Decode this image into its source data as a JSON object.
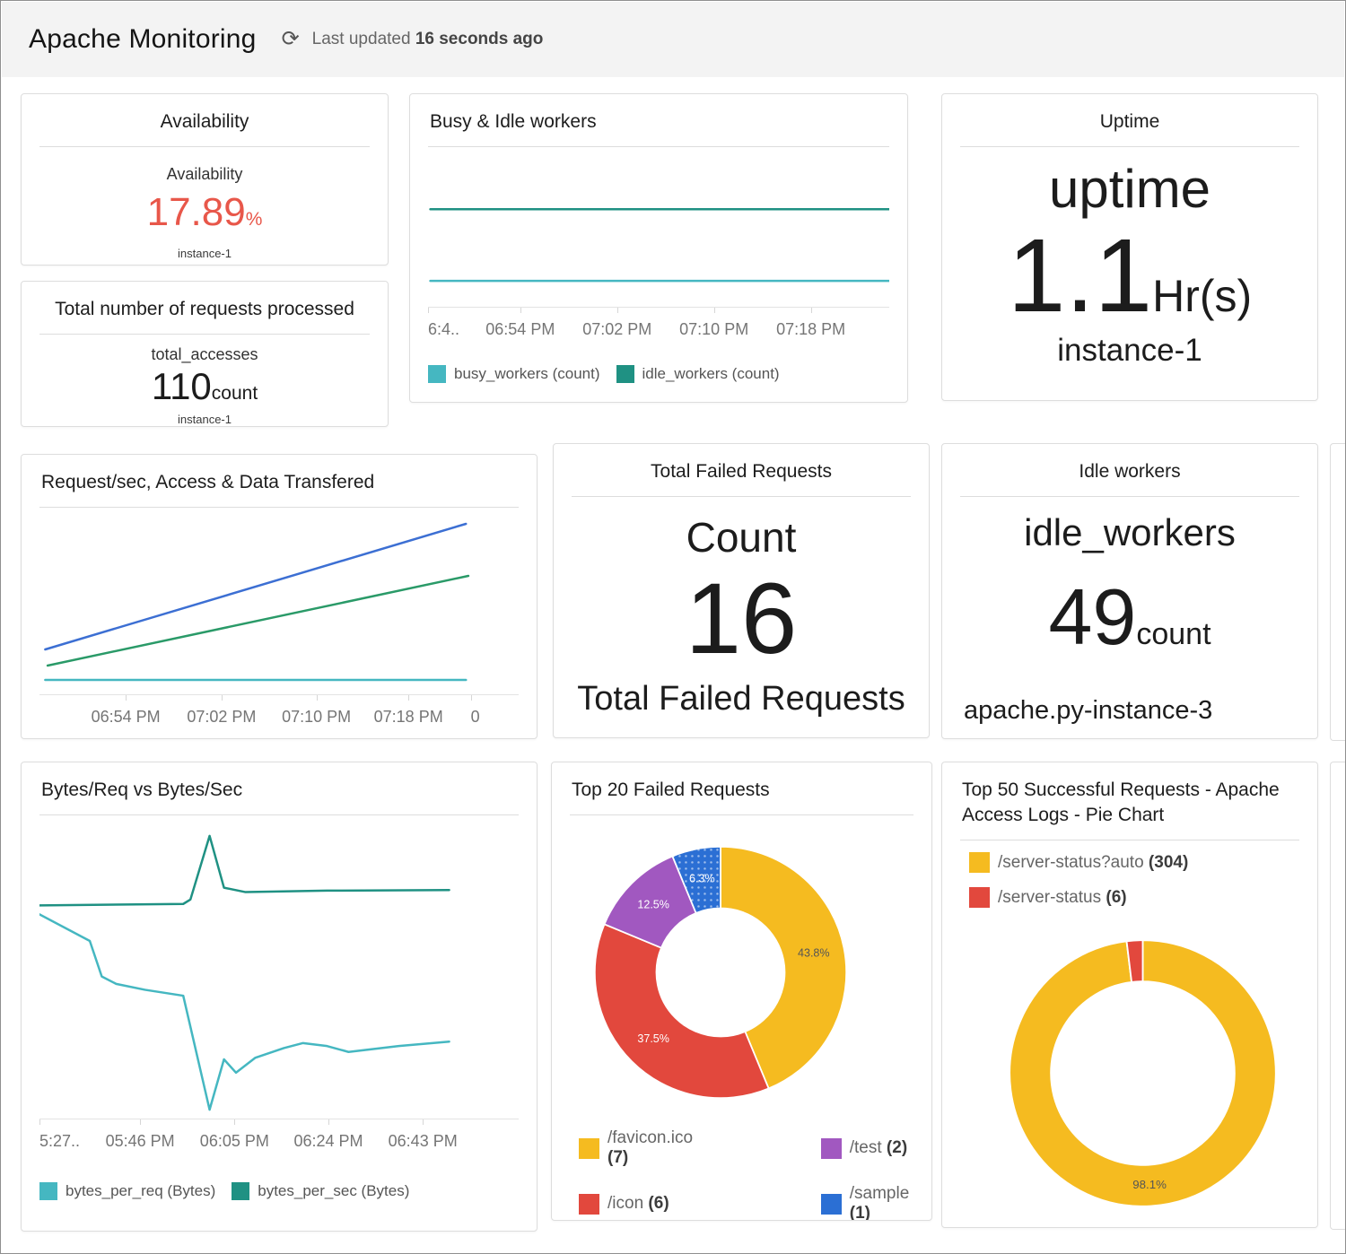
{
  "header": {
    "title": "Apache Monitoring",
    "refresh_glyph": "⟳",
    "last_updated_prefix": "Last updated",
    "last_updated_value": "16 seconds ago"
  },
  "cards": {
    "availability": {
      "title": "Availability",
      "metric_label": "Availability",
      "value": "17.89",
      "unit": "%",
      "instance": "instance-1",
      "value_color": "#e8574a"
    },
    "total_requests": {
      "title": "Total number of requests processed",
      "metric_label": "total_accesses",
      "value": "110",
      "unit": "count",
      "instance": "instance-1"
    },
    "uptime": {
      "title": "Uptime",
      "metric_label": "uptime",
      "value": "1.1",
      "unit": "Hr(s)",
      "instance": "instance-1"
    },
    "total_failed": {
      "title": "Total Failed Requests",
      "metric_label": "Count",
      "value": "16",
      "caption": "Total Failed Requests"
    },
    "idle_workers": {
      "title": "Idle workers",
      "metric_label": "idle_workers",
      "value": "49",
      "unit": "count",
      "instance": "apache.py-instance-3"
    }
  },
  "chart_data": [
    {
      "id": "busy_idle",
      "type": "line",
      "title": "Busy & Idle workers",
      "coords": "points are [x_fraction, y_fraction_from_top] of plot area; no y-axis labels shown in UI",
      "x_ticks": [
        {
          "label": "6:4..",
          "pos": 0.0,
          "align": "left"
        },
        {
          "label": "06:54 PM",
          "pos": 0.2
        },
        {
          "label": "07:02 PM",
          "pos": 0.41
        },
        {
          "label": "07:10 PM",
          "pos": 0.62
        },
        {
          "label": "07:18 PM",
          "pos": 0.83
        }
      ],
      "series": [
        {
          "name": "idle_workers (count)",
          "color": "#1f9183",
          "points": [
            [
              0.005,
              0.36
            ],
            [
              1.0,
              0.36
            ]
          ]
        },
        {
          "name": "busy_workers (count)",
          "color": "#45b7c1",
          "points": [
            [
              0.005,
              0.83
            ],
            [
              1.0,
              0.83
            ]
          ]
        }
      ],
      "legend": [
        {
          "label": "busy_workers (count)",
          "color": "#45b7c1"
        },
        {
          "label": "idle_workers (count)",
          "color": "#1f9183"
        }
      ]
    },
    {
      "id": "request_rate",
      "type": "line",
      "title": "Request/sec, Access & Data Transfered",
      "coords": "points are [x_fraction, y_fraction_from_top] of plot area; no y-axis labels shown in UI",
      "x_ticks": [
        {
          "label": "06:54 PM",
          "pos": 0.18
        },
        {
          "label": "07:02 PM",
          "pos": 0.38
        },
        {
          "label": "07:10 PM",
          "pos": 0.578
        },
        {
          "label": "07:18 PM",
          "pos": 0.77
        },
        {
          "label": "0",
          "pos": 0.9,
          "align": "left"
        }
      ],
      "series": [
        {
          "color": "#3c6fd3",
          "points": [
            [
              0.012,
              0.75
            ],
            [
              0.89,
              0.05
            ]
          ]
        },
        {
          "color": "#2a9a68",
          "points": [
            [
              0.017,
              0.84
            ],
            [
              0.895,
              0.34
            ]
          ]
        },
        {
          "color": "#45b7c1",
          "points": [
            [
              0.012,
              0.92
            ],
            [
              0.89,
              0.92
            ]
          ]
        }
      ]
    },
    {
      "id": "bytes",
      "type": "line",
      "title": "Bytes/Req vs Bytes/Sec",
      "coords": "points are [x_fraction, y_fraction_from_top] of plot area; no y-axis labels shown in UI",
      "x_ticks": [
        {
          "label": "5:27..",
          "pos": 0.0,
          "align": "left"
        },
        {
          "label": "05:46 PM",
          "pos": 0.21
        },
        {
          "label": "06:05 PM",
          "pos": 0.407
        },
        {
          "label": "06:24 PM",
          "pos": 0.603
        },
        {
          "label": "06:43 PM",
          "pos": 0.8
        }
      ],
      "series": [
        {
          "name": "bytes_per_req (Bytes)",
          "color": "#45b7c1",
          "points": [
            [
              0.0,
              0.31
            ],
            [
              0.105,
              0.4
            ],
            [
              0.13,
              0.52
            ],
            [
              0.16,
              0.545
            ],
            [
              0.22,
              0.565
            ],
            [
              0.3,
              0.585
            ],
            [
              0.355,
              0.97
            ],
            [
              0.385,
              0.8
            ],
            [
              0.41,
              0.845
            ],
            [
              0.45,
              0.795
            ],
            [
              0.51,
              0.762
            ],
            [
              0.55,
              0.745
            ],
            [
              0.6,
              0.755
            ],
            [
              0.645,
              0.775
            ],
            [
              0.75,
              0.755
            ],
            [
              0.855,
              0.74
            ]
          ]
        },
        {
          "name": "bytes_per_sec (Bytes)",
          "color": "#1f9183",
          "points": [
            [
              0.0,
              0.28
            ],
            [
              0.3,
              0.275
            ],
            [
              0.315,
              0.26
            ],
            [
              0.355,
              0.045
            ],
            [
              0.385,
              0.22
            ],
            [
              0.43,
              0.235
            ],
            [
              0.6,
              0.23
            ],
            [
              0.855,
              0.228
            ]
          ]
        }
      ],
      "legend": [
        {
          "label": "bytes_per_req (Bytes)",
          "color": "#45b7c1"
        },
        {
          "label": "bytes_per_sec (Bytes)",
          "color": "#1f9183"
        }
      ]
    },
    {
      "id": "top20_failed",
      "type": "pie",
      "title": "Top 20 Failed Requests",
      "hole_ratio": 0.51,
      "slices": [
        {
          "label": "/favicon.ico",
          "count": 7,
          "pct": "43.8%",
          "color": "#f5bb20",
          "label_color": "#555555"
        },
        {
          "label": "/icon",
          "count": 6,
          "pct": "37.5%",
          "color": "#e2483d",
          "label_color": "#ffffff"
        },
        {
          "label": "/test",
          "count": 2,
          "pct": "12.5%",
          "color": "#a158c0",
          "label_color": "#ffffff"
        },
        {
          "label": "/sample",
          "count": 1,
          "pct": "6.3%",
          "color": "#2b6fd4",
          "label_color": "#ffffff",
          "pattern": "dots"
        }
      ],
      "legend": [
        {
          "label": "/favicon.ico",
          "count": 7,
          "color": "#f5bb20"
        },
        {
          "label": "/icon",
          "count": 6,
          "color": "#e2483d"
        },
        {
          "label": "/test",
          "count": 2,
          "color": "#a158c0"
        },
        {
          "label": "/sample",
          "count": 1,
          "color": "#2b6fd4",
          "pattern": "dots"
        }
      ]
    },
    {
      "id": "top50_success",
      "type": "pie",
      "title": "Top 50 Successful Requests - Apache Access Logs - Pie Chart",
      "hole_ratio": 0.69,
      "slices": [
        {
          "label": "/server-status?auto",
          "count": 304,
          "pct": "98.1%",
          "color": "#f5bb20",
          "label_color": "#555555"
        },
        {
          "label": "/server-status",
          "count": 6,
          "pct": "",
          "color": "#e2483d",
          "label_color": "#ffffff"
        }
      ],
      "legend": [
        {
          "label": "/server-status?auto",
          "count": 304,
          "color": "#f5bb20"
        },
        {
          "label": "/server-status",
          "count": 6,
          "color": "#e2483d"
        }
      ]
    }
  ]
}
